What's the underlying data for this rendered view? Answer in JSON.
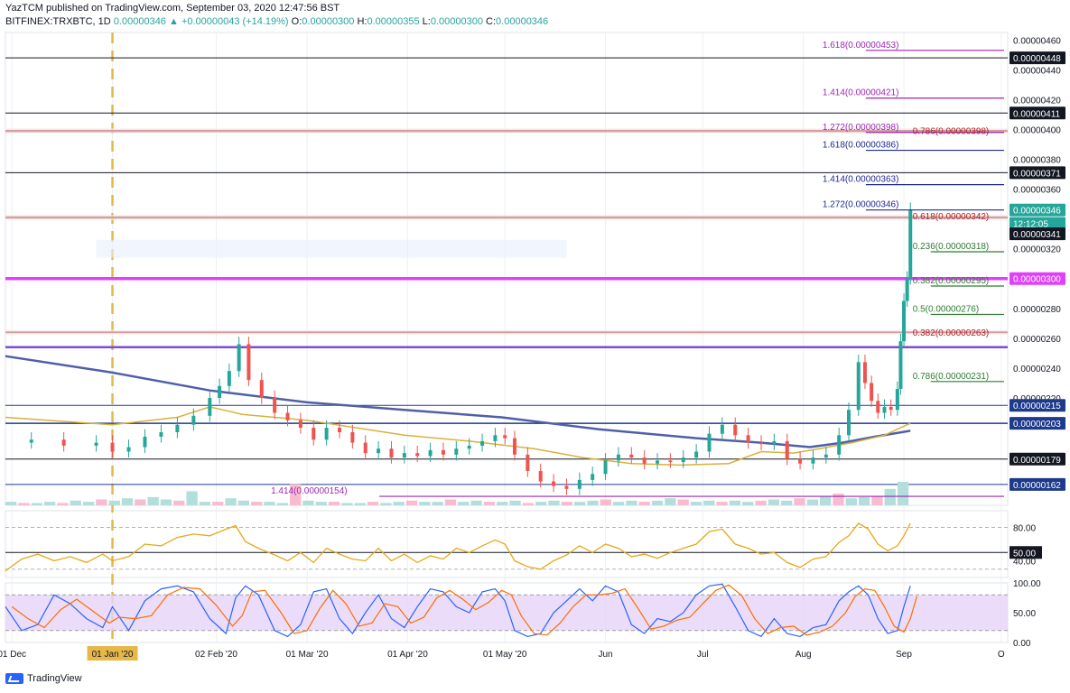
{
  "header": {
    "publisher": "YazTCM published on TradingView.com, September 03, 2020 12:47:56 BST",
    "symbol": "BITFINEX:TRXBTC, 1D",
    "last": "0.00000346",
    "change": "▲ +0.00000043 (+14.19%)",
    "open_label": "O:",
    "open": "0.00000300",
    "high_label": "H:",
    "high": "0.00000355",
    "low_label": "L:",
    "low": "0.00000300",
    "close_label": "C:",
    "close": "0.00000346"
  },
  "brand": {
    "name": "TradingView"
  },
  "colors": {
    "up": "#26a69a",
    "down": "#ef5350",
    "ma200": "#4f5fa8",
    "ma50": "#d8b23a",
    "fib_blue": "#1e2a8f",
    "fib_purple": "#9c27b0",
    "fib_red": "#b22222",
    "fib_green": "#2e7d32",
    "magenta": "#e040fb",
    "brown": "#8b3a2a",
    "violet": "#7b4cd6",
    "rsi": "#e6a817",
    "stoch_fill": "#e6d5f7"
  },
  "chart_data": {
    "type": "candlestick",
    "y_unit": "BTC",
    "ylim": [
      1.48e-06,
      4.65e-06
    ],
    "x_ticks": [
      {
        "label": "01 Dec",
        "day": -31
      },
      {
        "label": "01 Jan '20",
        "day": 0,
        "highlight": true
      },
      {
        "label": "02 Feb '20",
        "day": 32
      },
      {
        "label": "01 Mar '20",
        "day": 60
      },
      {
        "label": "01 Apr '20",
        "day": 91
      },
      {
        "label": "01 May '20",
        "day": 121
      },
      {
        "label": "Jun",
        "day": 152
      },
      {
        "label": "Jul",
        "day": 182
      },
      {
        "label": "Aug",
        "day": 213
      },
      {
        "label": "Sep",
        "day": 244
      },
      {
        "label": "O",
        "day": 274
      }
    ],
    "x_range_days": [
      -33,
      276
    ],
    "y_ticks": [
      "0.00000460",
      "0.00000440",
      "0.00000420",
      "0.00000400",
      "0.00000380",
      "0.00000360",
      "0.00000320",
      "0.00000280",
      "0.00000260",
      "0.00000240",
      "0.00000220",
      "0.00000179"
    ],
    "y_tick_values": [
      460,
      440,
      420,
      400,
      380,
      360,
      320,
      280,
      260,
      240,
      220,
      179
    ],
    "price_tags": [
      {
        "label": "0.00000448",
        "value": 448,
        "bg": "#131722",
        "fg": "#ffffff"
      },
      {
        "label": "0.00000411",
        "value": 411,
        "bg": "#131722",
        "fg": "#ffffff"
      },
      {
        "label": "0.00000371",
        "value": 371,
        "bg": "#131722",
        "fg": "#ffffff"
      },
      {
        "label": "0.00000346",
        "value": 346,
        "bg": "#26a69a",
        "fg": "#ffffff"
      },
      {
        "label": "12:12:05",
        "value": 337,
        "bg": "#26a69a",
        "fg": "#ffffff"
      },
      {
        "label": "0.00000341",
        "value": 330,
        "bg": "#131722",
        "fg": "#ffffff"
      },
      {
        "label": "0.00000300",
        "value": 300,
        "bg": "#e040fb",
        "fg": "#ffffff"
      },
      {
        "label": "0.00000215",
        "value": 215,
        "bg": "#1e3a8a",
        "fg": "#ffffff"
      },
      {
        "label": "0.00000203",
        "value": 203,
        "bg": "#1e3a8a",
        "fg": "#ffffff"
      },
      {
        "label": "0.00000179",
        "value": 179,
        "bg": "#131722",
        "fg": "#ffffff"
      },
      {
        "label": "0.00000162",
        "value": 162,
        "bg": "#1e3a8a",
        "fg": "#ffffff"
      }
    ],
    "horizontal_lines": [
      {
        "value": 448,
        "color": "#131722",
        "width": 1
      },
      {
        "value": 411,
        "color": "#131722",
        "width": 1
      },
      {
        "value": 399,
        "color": "#8b3a2a",
        "width": 2.5
      },
      {
        "value": 371,
        "color": "#131722",
        "width": 1
      },
      {
        "value": 341,
        "color": "#8b3a2a",
        "width": 2.5
      },
      {
        "value": 300,
        "color": "#e040fb",
        "width": 3.5
      },
      {
        "value": 264,
        "color": "#8b3a2a",
        "width": 2
      },
      {
        "value": 254,
        "color": "#7b4cd6",
        "width": 2.5
      },
      {
        "value": 215,
        "color": "#1e3a8a",
        "width": 1
      },
      {
        "value": 203,
        "color": "#1e3a8a",
        "width": 1.5
      },
      {
        "value": 179,
        "color": "#131722",
        "width": 1
      },
      {
        "value": 162,
        "color": "#1e3a8a",
        "width": 1
      }
    ],
    "fib_levels": [
      {
        "label": "1.618(0.00000453)",
        "value": 453,
        "color": "#9c27b0",
        "from_day": 210
      },
      {
        "label": "1.414(0.00000421)",
        "value": 421,
        "color": "#9c27b0",
        "from_day": 210
      },
      {
        "label": "1.272(0.00000398)",
        "value": 398,
        "color": "#9c27b0",
        "from_day": 210
      },
      {
        "label": "1.618(0.00000386)",
        "value": 386,
        "color": "#1e2a8f",
        "from_day": 210
      },
      {
        "label": "1.414(0.00000363)",
        "value": 363,
        "color": "#1e2a8f",
        "from_day": 210
      },
      {
        "label": "1.272(0.00000346)",
        "value": 346,
        "color": "#1e2a8f",
        "from_day": 210
      },
      {
        "label": "0.786(0.00000398)",
        "value": 395,
        "color": "#b22222",
        "from_day": 230,
        "label_only": true
      },
      {
        "label": "0.618(0.00000342)",
        "value": 338,
        "color": "#b22222",
        "from_day": 230,
        "label_only": true
      },
      {
        "label": "0.382(0.00000263)",
        "value": 260,
        "color": "#b22222",
        "from_day": 230,
        "label_only": true
      },
      {
        "label": "0.236(0.00000318)",
        "value": 318,
        "color": "#2e7d32",
        "from_day": 230
      },
      {
        "label": "0.382(0.00000295)",
        "value": 295,
        "color": "#2e7d32",
        "from_day": 230
      },
      {
        "label": "0.5(0.00000276)",
        "value": 276,
        "color": "#2e7d32",
        "from_day": 230
      },
      {
        "label": "0.786(0.00000231)",
        "value": 231,
        "color": "#2e7d32",
        "from_day": 230
      },
      {
        "label": "1.414(0.00000154)",
        "value": 154,
        "color": "#9c27b0",
        "from_day": 60
      }
    ],
    "ma200_points": [
      [
        -33,
        248
      ],
      [
        0,
        237
      ],
      [
        30,
        225
      ],
      [
        60,
        217
      ],
      [
        90,
        212
      ],
      [
        120,
        207
      ],
      [
        150,
        199
      ],
      [
        180,
        193
      ],
      [
        200,
        190
      ],
      [
        215,
        187
      ],
      [
        225,
        190
      ],
      [
        235,
        194
      ],
      [
        246,
        198
      ]
    ],
    "ma50_points": [
      [
        -33,
        207
      ],
      [
        -20,
        205
      ],
      [
        0,
        202
      ],
      [
        20,
        207
      ],
      [
        30,
        214
      ],
      [
        40,
        209
      ],
      [
        60,
        205
      ],
      [
        75,
        200
      ],
      [
        90,
        195
      ],
      [
        110,
        191
      ],
      [
        130,
        186
      ],
      [
        145,
        180
      ],
      [
        160,
        176
      ],
      [
        175,
        175
      ],
      [
        190,
        176
      ],
      [
        200,
        184
      ],
      [
        210,
        183
      ],
      [
        218,
        186
      ],
      [
        228,
        190
      ],
      [
        238,
        195
      ],
      [
        246,
        203
      ]
    ],
    "candles_close": [
      [
        -33,
        190
      ],
      [
        -25,
        192
      ],
      [
        -15,
        188
      ],
      [
        -5,
        190
      ],
      [
        0,
        184
      ],
      [
        5,
        187
      ],
      [
        10,
        194
      ],
      [
        15,
        197
      ],
      [
        20,
        202
      ],
      [
        25,
        208
      ],
      [
        30,
        220
      ],
      [
        33,
        228
      ],
      [
        36,
        238
      ],
      [
        39,
        256
      ],
      [
        42,
        232
      ],
      [
        46,
        220
      ],
      [
        50,
        210
      ],
      [
        54,
        205
      ],
      [
        58,
        200
      ],
      [
        62,
        192
      ],
      [
        66,
        200
      ],
      [
        70,
        197
      ],
      [
        74,
        190
      ],
      [
        78,
        183
      ],
      [
        82,
        186
      ],
      [
        86,
        180
      ],
      [
        90,
        183
      ],
      [
        94,
        181
      ],
      [
        98,
        185
      ],
      [
        102,
        182
      ],
      [
        106,
        186
      ],
      [
        110,
        188
      ],
      [
        114,
        191
      ],
      [
        118,
        195
      ],
      [
        121,
        193
      ],
      [
        124,
        182
      ],
      [
        128,
        171
      ],
      [
        132,
        164
      ],
      [
        136,
        161
      ],
      [
        140,
        159
      ],
      [
        144,
        165
      ],
      [
        148,
        169
      ],
      [
        152,
        178
      ],
      [
        156,
        182
      ],
      [
        160,
        180
      ],
      [
        164,
        176
      ],
      [
        168,
        178
      ],
      [
        172,
        177
      ],
      [
        176,
        180
      ],
      [
        180,
        184
      ],
      [
        184,
        196
      ],
      [
        188,
        202
      ],
      [
        192,
        195
      ],
      [
        196,
        190
      ],
      [
        200,
        189
      ],
      [
        204,
        191
      ],
      [
        208,
        179
      ],
      [
        212,
        176
      ],
      [
        216,
        180
      ],
      [
        220,
        182
      ],
      [
        224,
        195
      ],
      [
        227,
        212
      ],
      [
        230,
        244
      ],
      [
        232,
        230
      ],
      [
        234,
        218
      ],
      [
        236,
        210
      ],
      [
        238,
        214
      ],
      [
        240,
        212
      ],
      [
        242,
        226
      ],
      [
        243,
        258
      ],
      [
        244,
        285
      ],
      [
        245,
        300
      ],
      [
        246,
        346
      ]
    ],
    "volume_bars": [
      3,
      2,
      2,
      3,
      2,
      4,
      3,
      5,
      4,
      6,
      5,
      7,
      5,
      4,
      12,
      3,
      3,
      6,
      4,
      3,
      3,
      2,
      18,
      4,
      3,
      3,
      2,
      2,
      3,
      2,
      3,
      4,
      3,
      3,
      5,
      3,
      4,
      3,
      3,
      4,
      2,
      3,
      4,
      3,
      3,
      4,
      5,
      3,
      4,
      3,
      4,
      6,
      5,
      3,
      4,
      3,
      4,
      3,
      4,
      5,
      4,
      6,
      5,
      8,
      10,
      6,
      7,
      8,
      14,
      20
    ],
    "rsi": {
      "ticks": [
        "80.00",
        "50.00",
        "40.00"
      ],
      "range": [
        20,
        100
      ],
      "levels": [
        80,
        50,
        30
      ],
      "points": [
        [
          -33,
          28
        ],
        [
          -28,
          42
        ],
        [
          -23,
          48
        ],
        [
          -18,
          40
        ],
        [
          -13,
          45
        ],
        [
          -8,
          38
        ],
        [
          -3,
          48
        ],
        [
          0,
          40
        ],
        [
          5,
          45
        ],
        [
          10,
          60
        ],
        [
          15,
          58
        ],
        [
          20,
          68
        ],
        [
          25,
          72
        ],
        [
          30,
          70
        ],
        [
          35,
          78
        ],
        [
          38,
          82
        ],
        [
          41,
          63
        ],
        [
          45,
          55
        ],
        [
          50,
          47
        ],
        [
          54,
          40
        ],
        [
          58,
          50
        ],
        [
          62,
          38
        ],
        [
          66,
          55
        ],
        [
          70,
          48
        ],
        [
          74,
          42
        ],
        [
          78,
          40
        ],
        [
          82,
          55
        ],
        [
          86,
          40
        ],
        [
          90,
          48
        ],
        [
          94,
          38
        ],
        [
          98,
          46
        ],
        [
          102,
          42
        ],
        [
          106,
          55
        ],
        [
          110,
          50
        ],
        [
          114,
          58
        ],
        [
          118,
          65
        ],
        [
          121,
          60
        ],
        [
          124,
          40
        ],
        [
          128,
          33
        ],
        [
          132,
          30
        ],
        [
          136,
          40
        ],
        [
          140,
          47
        ],
        [
          144,
          58
        ],
        [
          148,
          50
        ],
        [
          152,
          60
        ],
        [
          156,
          55
        ],
        [
          160,
          45
        ],
        [
          164,
          48
        ],
        [
          168,
          43
        ],
        [
          172,
          50
        ],
        [
          176,
          55
        ],
        [
          180,
          60
        ],
        [
          184,
          75
        ],
        [
          188,
          78
        ],
        [
          192,
          60
        ],
        [
          196,
          55
        ],
        [
          200,
          48
        ],
        [
          204,
          50
        ],
        [
          208,
          38
        ],
        [
          212,
          32
        ],
        [
          216,
          42
        ],
        [
          220,
          45
        ],
        [
          224,
          62
        ],
        [
          227,
          70
        ],
        [
          230,
          85
        ],
        [
          233,
          78
        ],
        [
          236,
          60
        ],
        [
          239,
          52
        ],
        [
          242,
          58
        ],
        [
          244,
          70
        ],
        [
          246,
          85
        ]
      ]
    },
    "stoch": {
      "ticks": [
        "100.00",
        "50.00",
        "0.00"
      ],
      "range": [
        0,
        100
      ],
      "band": [
        20,
        80
      ],
      "k_points": [
        [
          -33,
          60
        ],
        [
          -28,
          20
        ],
        [
          -23,
          30
        ],
        [
          -18,
          80
        ],
        [
          -13,
          65
        ],
        [
          -8,
          40
        ],
        [
          -3,
          25
        ],
        [
          0,
          60
        ],
        [
          5,
          20
        ],
        [
          10,
          70
        ],
        [
          15,
          90
        ],
        [
          20,
          95
        ],
        [
          25,
          85
        ],
        [
          30,
          40
        ],
        [
          35,
          15
        ],
        [
          38,
          75
        ],
        [
          41,
          95
        ],
        [
          45,
          80
        ],
        [
          50,
          20
        ],
        [
          54,
          10
        ],
        [
          58,
          30
        ],
        [
          62,
          85
        ],
        [
          66,
          90
        ],
        [
          70,
          40
        ],
        [
          74,
          15
        ],
        [
          78,
          50
        ],
        [
          82,
          80
        ],
        [
          86,
          40
        ],
        [
          90,
          25
        ],
        [
          94,
          60
        ],
        [
          98,
          90
        ],
        [
          102,
          85
        ],
        [
          106,
          60
        ],
        [
          110,
          50
        ],
        [
          114,
          85
        ],
        [
          118,
          90
        ],
        [
          121,
          70
        ],
        [
          124,
          20
        ],
        [
          128,
          10
        ],
        [
          132,
          15
        ],
        [
          136,
          50
        ],
        [
          140,
          70
        ],
        [
          144,
          90
        ],
        [
          148,
          70
        ],
        [
          152,
          95
        ],
        [
          156,
          85
        ],
        [
          160,
          30
        ],
        [
          164,
          15
        ],
        [
          168,
          40
        ],
        [
          172,
          35
        ],
        [
          176,
          50
        ],
        [
          180,
          80
        ],
        [
          184,
          95
        ],
        [
          188,
          98
        ],
        [
          192,
          60
        ],
        [
          196,
          20
        ],
        [
          200,
          10
        ],
        [
          204,
          40
        ],
        [
          208,
          15
        ],
        [
          212,
          10
        ],
        [
          216,
          25
        ],
        [
          220,
          30
        ],
        [
          224,
          70
        ],
        [
          227,
          85
        ],
        [
          230,
          95
        ],
        [
          233,
          80
        ],
        [
          236,
          40
        ],
        [
          239,
          15
        ],
        [
          242,
          20
        ],
        [
          244,
          60
        ],
        [
          246,
          95
        ]
      ]
    }
  }
}
